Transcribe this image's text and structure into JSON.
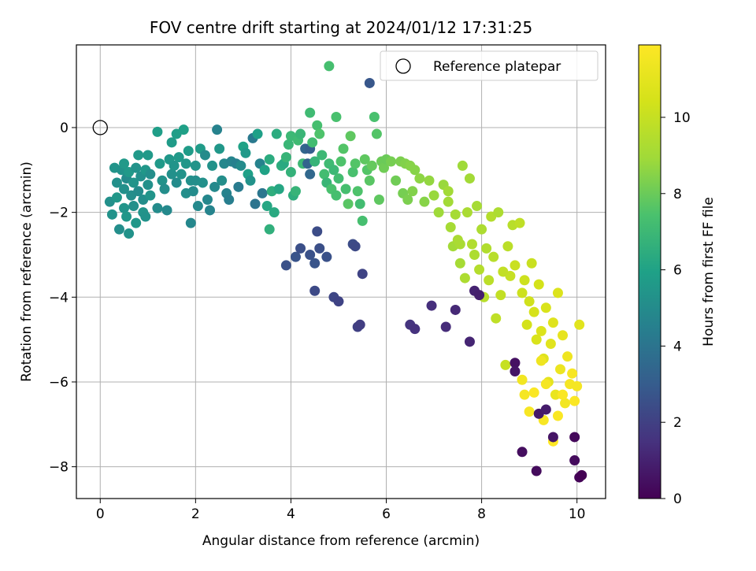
{
  "chart_data": {
    "type": "scatter",
    "title": "FOV centre drift starting at 2024/01/12 17:31:25",
    "xlabel": "Angular distance from reference (arcmin)",
    "ylabel": "Rotation from reference (arcmin)",
    "xlim": [
      -0.5,
      10.6
    ],
    "ylim": [
      -8.75,
      1.95
    ],
    "xticks": [
      0,
      2,
      4,
      6,
      8,
      10
    ],
    "yticks": [
      -8,
      -6,
      -4,
      -2,
      0
    ],
    "grid": true,
    "legend": {
      "placement": "upper right",
      "entries": [
        {
          "label": "Reference platepar",
          "marker": "open-circle"
        }
      ]
    },
    "reference_point": {
      "x": 0,
      "y": 0
    },
    "colorbar": {
      "label": "Hours from first FF file",
      "colormap": "viridis",
      "range": [
        0,
        11.9
      ],
      "ticks": [
        0,
        2,
        4,
        6,
        8,
        10
      ]
    },
    "points": [
      {
        "x": 0.2,
        "y": -1.75,
        "h": 5.2
      },
      {
        "x": 0.25,
        "y": -2.05,
        "h": 5.3
      },
      {
        "x": 0.3,
        "y": -0.95,
        "h": 5.4
      },
      {
        "x": 0.35,
        "y": -1.3,
        "h": 5.2
      },
      {
        "x": 0.35,
        "y": -1.65,
        "h": 5.5
      },
      {
        "x": 0.4,
        "y": -2.4,
        "h": 5.1
      },
      {
        "x": 0.45,
        "y": -1.0,
        "h": 5.3
      },
      {
        "x": 0.5,
        "y": -0.85,
        "h": 5.6
      },
      {
        "x": 0.5,
        "y": -1.45,
        "h": 5.2
      },
      {
        "x": 0.5,
        "y": -1.9,
        "h": 5.4
      },
      {
        "x": 0.55,
        "y": -2.1,
        "h": 5.5
      },
      {
        "x": 0.55,
        "y": -1.2,
        "h": 5.0
      },
      {
        "x": 0.6,
        "y": -2.5,
        "h": 5.3
      },
      {
        "x": 0.6,
        "y": -1.05,
        "h": 5.6
      },
      {
        "x": 0.65,
        "y": -1.6,
        "h": 5.1
      },
      {
        "x": 0.7,
        "y": -1.3,
        "h": 5.4
      },
      {
        "x": 0.7,
        "y": -1.85,
        "h": 5.2
      },
      {
        "x": 0.75,
        "y": -2.25,
        "h": 5.5
      },
      {
        "x": 0.75,
        "y": -0.95,
        "h": 5.3
      },
      {
        "x": 0.8,
        "y": -1.5,
        "h": 5.0
      },
      {
        "x": 0.8,
        "y": -0.65,
        "h": 5.6
      },
      {
        "x": 0.85,
        "y": -1.15,
        "h": 5.2
      },
      {
        "x": 0.9,
        "y": -2.0,
        "h": 5.4
      },
      {
        "x": 0.9,
        "y": -1.7,
        "h": 5.1
      },
      {
        "x": 0.95,
        "y": -1.0,
        "h": 5.5
      },
      {
        "x": 0.95,
        "y": -2.1,
        "h": 5.3
      },
      {
        "x": 1.0,
        "y": -1.35,
        "h": 5.2
      },
      {
        "x": 1.0,
        "y": -0.65,
        "h": 5.6
      },
      {
        "x": 1.05,
        "y": -1.6,
        "h": 5.4
      },
      {
        "x": 1.05,
        "y": -1.1,
        "h": 5.1
      },
      {
        "x": 1.2,
        "y": -0.1,
        "h": 5.8
      },
      {
        "x": 1.2,
        "y": -1.9,
        "h": 5.0
      },
      {
        "x": 1.25,
        "y": -0.85,
        "h": 5.6
      },
      {
        "x": 1.3,
        "y": -1.25,
        "h": 5.3
      },
      {
        "x": 1.35,
        "y": -1.45,
        "h": 5.1
      },
      {
        "x": 1.4,
        "y": -1.95,
        "h": 4.9
      },
      {
        "x": 1.45,
        "y": -0.75,
        "h": 5.5
      },
      {
        "x": 1.5,
        "y": -0.35,
        "h": 5.7
      },
      {
        "x": 1.5,
        "y": -1.1,
        "h": 5.2
      },
      {
        "x": 1.55,
        "y": -0.9,
        "h": 5.4
      },
      {
        "x": 1.6,
        "y": -1.3,
        "h": 5.0
      },
      {
        "x": 1.6,
        "y": -0.15,
        "h": 5.8
      },
      {
        "x": 1.65,
        "y": -0.7,
        "h": 5.6
      },
      {
        "x": 1.7,
        "y": -1.1,
        "h": 5.3
      },
      {
        "x": 1.75,
        "y": -0.05,
        "h": 5.9
      },
      {
        "x": 1.8,
        "y": -1.55,
        "h": 5.1
      },
      {
        "x": 1.8,
        "y": -0.85,
        "h": 5.5
      },
      {
        "x": 1.85,
        "y": -0.55,
        "h": 5.7
      },
      {
        "x": 1.9,
        "y": -1.25,
        "h": 5.2
      },
      {
        "x": 1.9,
        "y": -2.25,
        "h": 4.8
      },
      {
        "x": 1.95,
        "y": -1.5,
        "h": 5.0
      },
      {
        "x": 2.0,
        "y": -0.9,
        "h": 5.4
      },
      {
        "x": 2.0,
        "y": -1.25,
        "h": 5.1
      },
      {
        "x": 2.05,
        "y": -1.85,
        "h": 4.9
      },
      {
        "x": 2.1,
        "y": -0.5,
        "h": 5.7
      },
      {
        "x": 2.15,
        "y": -1.3,
        "h": 5.2
      },
      {
        "x": 2.2,
        "y": -0.65,
        "h": 5.0
      },
      {
        "x": 2.25,
        "y": -1.7,
        "h": 4.8
      },
      {
        "x": 2.3,
        "y": -1.95,
        "h": 4.7
      },
      {
        "x": 2.35,
        "y": -0.9,
        "h": 5.3
      },
      {
        "x": 2.4,
        "y": -1.4,
        "h": 4.9
      },
      {
        "x": 2.45,
        "y": -0.05,
        "h": 4.6
      },
      {
        "x": 2.5,
        "y": -0.5,
        "h": 5.5
      },
      {
        "x": 2.55,
        "y": -1.25,
        "h": 5.1
      },
      {
        "x": 2.6,
        "y": -0.85,
        "h": 4.8
      },
      {
        "x": 2.65,
        "y": -1.55,
        "h": 4.6
      },
      {
        "x": 2.7,
        "y": -1.7,
        "h": 4.4
      },
      {
        "x": 2.75,
        "y": -0.8,
        "h": 4.7
      },
      {
        "x": 2.85,
        "y": -0.85,
        "h": 4.5
      },
      {
        "x": 2.9,
        "y": -1.4,
        "h": 4.3
      },
      {
        "x": 2.95,
        "y": -0.9,
        "h": 5.0
      },
      {
        "x": 3.0,
        "y": -0.45,
        "h": 6.0
      },
      {
        "x": 3.05,
        "y": -0.6,
        "h": 5.6
      },
      {
        "x": 3.1,
        "y": -1.1,
        "h": 5.9
      },
      {
        "x": 3.15,
        "y": -1.25,
        "h": 5.3
      },
      {
        "x": 3.2,
        "y": -0.25,
        "h": 4.2
      },
      {
        "x": 3.25,
        "y": -1.8,
        "h": 4.0
      },
      {
        "x": 3.3,
        "y": -0.15,
        "h": 5.9
      },
      {
        "x": 3.35,
        "y": -0.85,
        "h": 4.6
      },
      {
        "x": 3.4,
        "y": -1.55,
        "h": 4.1
      },
      {
        "x": 3.45,
        "y": -1.0,
        "h": 6.0
      },
      {
        "x": 3.5,
        "y": -1.85,
        "h": 6.2
      },
      {
        "x": 3.55,
        "y": -2.4,
        "h": 6.6
      },
      {
        "x": 3.55,
        "y": -0.75,
        "h": 6.4
      },
      {
        "x": 3.6,
        "y": -1.5,
        "h": 6.5
      },
      {
        "x": 3.65,
        "y": -2.0,
        "h": 6.3
      },
      {
        "x": 3.7,
        "y": -0.15,
        "h": 6.4
      },
      {
        "x": 3.75,
        "y": -1.45,
        "h": 6.2
      },
      {
        "x": 3.8,
        "y": -0.9,
        "h": 6.5
      },
      {
        "x": 3.85,
        "y": -0.85,
        "h": 6.3
      },
      {
        "x": 3.9,
        "y": -0.7,
        "h": 6.8
      },
      {
        "x": 3.95,
        "y": -0.4,
        "h": 6.9
      },
      {
        "x": 4.0,
        "y": -0.2,
        "h": 7.0
      },
      {
        "x": 4.0,
        "y": -1.05,
        "h": 6.7
      },
      {
        "x": 4.05,
        "y": -1.6,
        "h": 6.5
      },
      {
        "x": 4.1,
        "y": -1.5,
        "h": 6.8
      },
      {
        "x": 4.15,
        "y": -0.3,
        "h": 7.1
      },
      {
        "x": 4.2,
        "y": -0.15,
        "h": 6.9
      },
      {
        "x": 4.25,
        "y": -0.85,
        "h": 7.0
      },
      {
        "x": 4.3,
        "y": -0.5,
        "h": 3.4
      },
      {
        "x": 4.35,
        "y": -0.85,
        "h": 3.3
      },
      {
        "x": 4.4,
        "y": -1.1,
        "h": 3.5
      },
      {
        "x": 4.4,
        "y": -0.5,
        "h": 3.1
      },
      {
        "x": 4.45,
        "y": -0.35,
        "h": 7.2
      },
      {
        "x": 4.5,
        "y": -0.8,
        "h": 6.8
      },
      {
        "x": 4.55,
        "y": 0.05,
        "h": 7.3
      },
      {
        "x": 4.6,
        "y": -0.15,
        "h": 7.5
      },
      {
        "x": 4.65,
        "y": -0.65,
        "h": 7.0
      },
      {
        "x": 4.7,
        "y": -1.1,
        "h": 7.2
      },
      {
        "x": 4.75,
        "y": -1.3,
        "h": 6.9
      },
      {
        "x": 4.8,
        "y": -0.85,
        "h": 7.1
      },
      {
        "x": 4.85,
        "y": -1.45,
        "h": 7.4
      },
      {
        "x": 4.9,
        "y": -1.0,
        "h": 7.0
      },
      {
        "x": 4.95,
        "y": -1.6,
        "h": 7.3
      },
      {
        "x": 5.0,
        "y": -1.2,
        "h": 7.2
      },
      {
        "x": 5.05,
        "y": -0.8,
        "h": 7.5
      },
      {
        "x": 5.1,
        "y": -0.5,
        "h": 7.6
      },
      {
        "x": 5.15,
        "y": -1.45,
        "h": 7.3
      },
      {
        "x": 5.2,
        "y": -1.8,
        "h": 7.7
      },
      {
        "x": 5.25,
        "y": -0.2,
        "h": 7.8
      },
      {
        "x": 5.3,
        "y": -1.05,
        "h": 7.4
      },
      {
        "x": 5.35,
        "y": -0.85,
        "h": 7.6
      },
      {
        "x": 5.4,
        "y": -1.5,
        "h": 7.5
      },
      {
        "x": 5.45,
        "y": -1.8,
        "h": 7.2
      },
      {
        "x": 5.5,
        "y": -2.2,
        "h": 7.3
      },
      {
        "x": 5.55,
        "y": -0.75,
        "h": 7.8
      },
      {
        "x": 5.6,
        "y": -1.0,
        "h": 7.6
      },
      {
        "x": 5.65,
        "y": -1.25,
        "h": 7.7
      },
      {
        "x": 5.7,
        "y": -0.9,
        "h": 7.9
      },
      {
        "x": 5.75,
        "y": 0.25,
        "h": 7.4
      },
      {
        "x": 5.8,
        "y": -0.15,
        "h": 7.6
      },
      {
        "x": 5.85,
        "y": -1.7,
        "h": 7.8
      },
      {
        "x": 5.9,
        "y": -0.8,
        "h": 8.0
      },
      {
        "x": 5.95,
        "y": -0.95,
        "h": 8.1
      },
      {
        "x": 6.0,
        "y": -0.75,
        "h": 8.0
      },
      {
        "x": 6.1,
        "y": -0.8,
        "h": 8.2
      },
      {
        "x": 6.2,
        "y": -1.25,
        "h": 8.1
      },
      {
        "x": 6.3,
        "y": -0.8,
        "h": 8.3
      },
      {
        "x": 6.35,
        "y": -1.55,
        "h": 8.2
      },
      {
        "x": 6.4,
        "y": -0.85,
        "h": 8.4
      },
      {
        "x": 6.45,
        "y": -1.7,
        "h": 8.3
      },
      {
        "x": 6.5,
        "y": -0.9,
        "h": 8.5
      },
      {
        "x": 6.55,
        "y": -1.5,
        "h": 8.4
      },
      {
        "x": 6.6,
        "y": -1.0,
        "h": 8.5
      },
      {
        "x": 6.7,
        "y": -1.2,
        "h": 8.6
      },
      {
        "x": 6.8,
        "y": -1.75,
        "h": 8.5
      },
      {
        "x": 6.9,
        "y": -1.25,
        "h": 8.7
      },
      {
        "x": 7.0,
        "y": -1.6,
        "h": 8.8
      },
      {
        "x": 7.1,
        "y": -2.0,
        "h": 8.9
      },
      {
        "x": 7.2,
        "y": -1.35,
        "h": 8.8
      },
      {
        "x": 7.3,
        "y": -1.75,
        "h": 9.0
      },
      {
        "x": 7.35,
        "y": -2.35,
        "h": 9.1
      },
      {
        "x": 7.4,
        "y": -2.8,
        "h": 9.0
      },
      {
        "x": 7.45,
        "y": -2.05,
        "h": 9.1
      },
      {
        "x": 7.5,
        "y": -2.65,
        "h": 9.2
      },
      {
        "x": 7.55,
        "y": -3.2,
        "h": 9.1
      },
      {
        "x": 7.6,
        "y": -0.9,
        "h": 8.9
      },
      {
        "x": 7.65,
        "y": -3.55,
        "h": 9.3
      },
      {
        "x": 7.7,
        "y": -2.0,
        "h": 9.2
      },
      {
        "x": 7.75,
        "y": -1.2,
        "h": 9.0
      },
      {
        "x": 7.8,
        "y": -2.75,
        "h": 9.4
      },
      {
        "x": 7.85,
        "y": -3.0,
        "h": 9.3
      },
      {
        "x": 7.9,
        "y": -1.85,
        "h": 9.1
      },
      {
        "x": 7.95,
        "y": -3.35,
        "h": 9.5
      },
      {
        "x": 8.0,
        "y": -2.4,
        "h": 9.3
      },
      {
        "x": 8.05,
        "y": -4.0,
        "h": 9.6
      },
      {
        "x": 8.1,
        "y": -2.85,
        "h": 9.4
      },
      {
        "x": 8.15,
        "y": -3.6,
        "h": 9.7
      },
      {
        "x": 8.2,
        "y": -2.1,
        "h": 9.5
      },
      {
        "x": 8.25,
        "y": -3.05,
        "h": 9.6
      },
      {
        "x": 8.3,
        "y": -4.5,
        "h": 9.8
      },
      {
        "x": 8.35,
        "y": -2.0,
        "h": 9.3
      },
      {
        "x": 8.4,
        "y": -3.95,
        "h": 9.9
      },
      {
        "x": 8.5,
        "y": -5.6,
        "h": 10.0
      },
      {
        "x": 8.55,
        "y": -2.8,
        "h": 9.7
      },
      {
        "x": 8.6,
        "y": -3.5,
        "h": 10.0
      },
      {
        "x": 8.65,
        "y": -2.3,
        "h": 9.6
      },
      {
        "x": 8.7,
        "y": -3.25,
        "h": 10.1
      },
      {
        "x": 8.8,
        "y": -2.25,
        "h": 9.8
      },
      {
        "x": 8.85,
        "y": -3.9,
        "h": 10.2
      },
      {
        "x": 8.9,
        "y": -3.6,
        "h": 10.2
      },
      {
        "x": 8.95,
        "y": -4.65,
        "h": 10.4
      },
      {
        "x": 9.0,
        "y": -4.1,
        "h": 10.3
      },
      {
        "x": 9.05,
        "y": -3.2,
        "h": 10.1
      },
      {
        "x": 9.1,
        "y": -4.35,
        "h": 10.5
      },
      {
        "x": 9.15,
        "y": -5.0,
        "h": 10.6
      },
      {
        "x": 9.2,
        "y": -3.7,
        "h": 10.4
      },
      {
        "x": 9.25,
        "y": -4.8,
        "h": 10.7
      },
      {
        "x": 9.3,
        "y": -5.45,
        "h": 10.8
      },
      {
        "x": 9.35,
        "y": -4.25,
        "h": 10.6
      },
      {
        "x": 9.4,
        "y": -6.0,
        "h": 11.0
      },
      {
        "x": 9.45,
        "y": -5.1,
        "h": 10.9
      },
      {
        "x": 9.5,
        "y": -4.6,
        "h": 10.8
      },
      {
        "x": 9.55,
        "y": -6.3,
        "h": 11.2
      },
      {
        "x": 9.6,
        "y": -3.9,
        "h": 10.7
      },
      {
        "x": 9.65,
        "y": -5.7,
        "h": 11.3
      },
      {
        "x": 9.7,
        "y": -4.9,
        "h": 11.1
      },
      {
        "x": 9.75,
        "y": -6.5,
        "h": 11.5
      },
      {
        "x": 9.8,
        "y": -5.4,
        "h": 11.4
      },
      {
        "x": 9.85,
        "y": -6.05,
        "h": 11.6
      },
      {
        "x": 9.9,
        "y": -5.8,
        "h": 11.7
      },
      {
        "x": 9.95,
        "y": -6.45,
        "h": 11.8
      },
      {
        "x": 10.0,
        "y": -6.1,
        "h": 11.6
      },
      {
        "x": 10.05,
        "y": -4.65,
        "h": 10.9
      },
      {
        "x": 8.85,
        "y": -5.95,
        "h": 11.5
      },
      {
        "x": 8.9,
        "y": -6.3,
        "h": 11.6
      },
      {
        "x": 9.0,
        "y": -6.7,
        "h": 11.7
      },
      {
        "x": 9.1,
        "y": -6.25,
        "h": 11.8
      },
      {
        "x": 9.3,
        "y": -6.9,
        "h": 11.7
      },
      {
        "x": 9.5,
        "y": -7.4,
        "h": 11.9
      },
      {
        "x": 9.6,
        "y": -6.8,
        "h": 11.8
      },
      {
        "x": 9.25,
        "y": -5.5,
        "h": 11.4
      },
      {
        "x": 9.7,
        "y": -6.3,
        "h": 11.8
      },
      {
        "x": 9.35,
        "y": -6.05,
        "h": 11.6
      },
      {
        "x": 3.9,
        "y": -3.25,
        "h": 2.6
      },
      {
        "x": 4.1,
        "y": -3.05,
        "h": 2.7
      },
      {
        "x": 4.2,
        "y": -2.85,
        "h": 2.5
      },
      {
        "x": 4.4,
        "y": -3.0,
        "h": 2.6
      },
      {
        "x": 4.5,
        "y": -3.2,
        "h": 2.7
      },
      {
        "x": 4.55,
        "y": -2.45,
        "h": 2.4
      },
      {
        "x": 4.6,
        "y": -2.85,
        "h": 2.5
      },
      {
        "x": 4.75,
        "y": -3.05,
        "h": 2.6
      },
      {
        "x": 4.5,
        "y": -3.85,
        "h": 2.3
      },
      {
        "x": 4.9,
        "y": -4.0,
        "h": 2.2
      },
      {
        "x": 5.0,
        "y": -4.1,
        "h": 2.1
      },
      {
        "x": 5.3,
        "y": -2.75,
        "h": 2.4
      },
      {
        "x": 5.35,
        "y": -2.8,
        "h": 2.3
      },
      {
        "x": 5.4,
        "y": -4.7,
        "h": 2.0
      },
      {
        "x": 5.45,
        "y": -4.65,
        "h": 1.9
      },
      {
        "x": 5.5,
        "y": -3.45,
        "h": 2.1
      },
      {
        "x": 5.65,
        "y": 1.05,
        "h": 2.8
      },
      {
        "x": 6.5,
        "y": -4.65,
        "h": 1.6
      },
      {
        "x": 6.6,
        "y": -4.75,
        "h": 1.5
      },
      {
        "x": 6.95,
        "y": -4.2,
        "h": 1.4
      },
      {
        "x": 7.25,
        "y": -4.7,
        "h": 1.3
      },
      {
        "x": 7.45,
        "y": -4.3,
        "h": 1.2
      },
      {
        "x": 7.75,
        "y": -5.05,
        "h": 1.1
      },
      {
        "x": 7.85,
        "y": -3.85,
        "h": 1.0
      },
      {
        "x": 7.95,
        "y": -3.95,
        "h": 0.9
      },
      {
        "x": 8.7,
        "y": -5.55,
        "h": 0.5
      },
      {
        "x": 8.7,
        "y": -5.75,
        "h": 0.6
      },
      {
        "x": 8.85,
        "y": -7.65,
        "h": 0.4
      },
      {
        "x": 9.15,
        "y": -8.1,
        "h": 0.3
      },
      {
        "x": 9.2,
        "y": -6.75,
        "h": 0.7
      },
      {
        "x": 9.35,
        "y": -6.65,
        "h": 0.8
      },
      {
        "x": 9.5,
        "y": -7.3,
        "h": 0.6
      },
      {
        "x": 9.95,
        "y": -7.3,
        "h": 0.2
      },
      {
        "x": 9.95,
        "y": -7.85,
        "h": 0.3
      },
      {
        "x": 10.05,
        "y": -8.25,
        "h": 0.1
      },
      {
        "x": 10.1,
        "y": -8.2,
        "h": 0.0
      },
      {
        "x": 4.8,
        "y": 1.45,
        "h": 7.3
      },
      {
        "x": 4.4,
        "y": 0.35,
        "h": 7.1
      },
      {
        "x": 4.95,
        "y": 0.25,
        "h": 7.4
      },
      {
        "x": 7.3,
        "y": -1.5,
        "h": 9.0
      },
      {
        "x": 7.55,
        "y": -2.75,
        "h": 9.2
      },
      {
        "x": 8.45,
        "y": -3.4,
        "h": 9.9
      }
    ]
  }
}
